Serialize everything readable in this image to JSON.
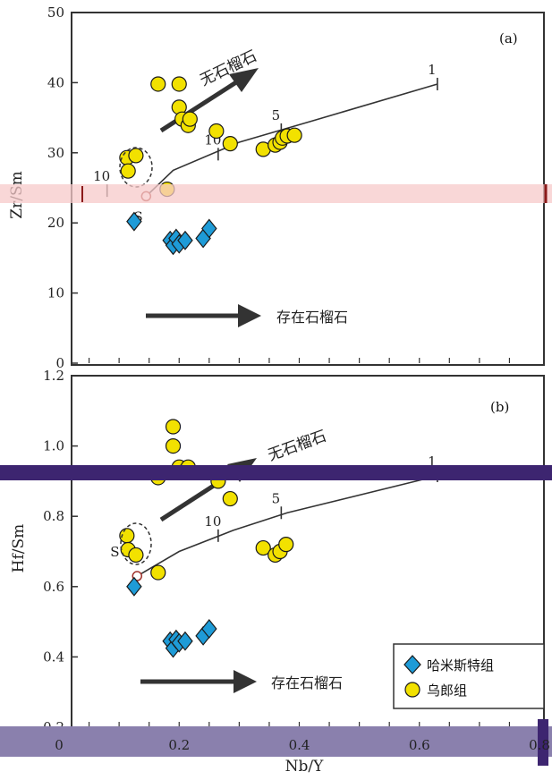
{
  "chart_data": [
    {
      "type": "scatter",
      "panel_label": "(a)",
      "ylabel": "Zr/Sm",
      "xlim": [
        0,
        0.8
      ],
      "ylim": [
        0,
        50
      ],
      "y_ticks": [
        0,
        10,
        20,
        30,
        40,
        50
      ],
      "series": [
        {
          "name": "哈米斯特组",
          "marker": "diamond",
          "points": [
            [
              0.125,
              20.2
            ],
            [
              0.185,
              17.5
            ],
            [
              0.19,
              16.8
            ],
            [
              0.195,
              17.8
            ],
            [
              0.2,
              17.0
            ],
            [
              0.21,
              17.5
            ],
            [
              0.24,
              17.8
            ],
            [
              0.25,
              19.2
            ]
          ]
        },
        {
          "name": "乌郎组",
          "marker": "circle",
          "points": [
            [
              0.165,
              39.8
            ],
            [
              0.2,
              39.8
            ],
            [
              0.2,
              36.5
            ],
            [
              0.205,
              34.8
            ],
            [
              0.215,
              33.9
            ],
            [
              0.218,
              34.8
            ],
            [
              0.262,
              33.1
            ],
            [
              0.285,
              31.3
            ],
            [
              0.34,
              30.5
            ],
            [
              0.36,
              31.1
            ],
            [
              0.368,
              31.5
            ],
            [
              0.372,
              32.1
            ],
            [
              0.38,
              32.4
            ],
            [
              0.392,
              32.5
            ],
            [
              0.113,
              29.3
            ],
            [
              0.128,
              29.6
            ],
            [
              0.115,
              27.4
            ],
            [
              0.18,
              24.8
            ]
          ]
        }
      ],
      "model_curve": {
        "points": [
          [
            0.145,
            23.8
          ],
          [
            0.19,
            27.5
          ],
          [
            0.3,
            31.5
          ],
          [
            0.42,
            34.5
          ],
          [
            0.63,
            39.8
          ]
        ],
        "source_label": "S",
        "tick_labels": [
          {
            "label": "1",
            "x": 0.63,
            "y": 39.8
          },
          {
            "label": "5",
            "x": 0.37,
            "y": 33.3
          },
          {
            "label": "10",
            "x": 0.265,
            "y": 29.8
          },
          {
            "label": "10",
            "x": 0.08,
            "y": 24.6
          }
        ]
      },
      "annotations": {
        "no_garnet": "无石榴石",
        "garnet_present": "存在石榴石"
      }
    },
    {
      "type": "scatter",
      "panel_label": "(b)",
      "ylabel": "Hf/Sm",
      "xlabel": "Nb/Y",
      "xlim": [
        0,
        0.8
      ],
      "ylim": [
        0.2,
        1.2
      ],
      "x_ticks": [
        0,
        0.2,
        0.4,
        0.6,
        0.8
      ],
      "x_tick_labels": [
        "0",
        "0.2",
        "0.4",
        "0.6",
        "0.8"
      ],
      "y_ticks": [
        0.2,
        0.4,
        0.6,
        0.8,
        1.0,
        1.2
      ],
      "y_tick_labels": [
        "0.2",
        "0.4",
        "0.6",
        "0.8",
        "1.0",
        "1.2"
      ],
      "series": [
        {
          "name": "哈米斯特组",
          "marker": "diamond",
          "points": [
            [
              0.125,
              0.6
            ],
            [
              0.185,
              0.445
            ],
            [
              0.19,
              0.425
            ],
            [
              0.195,
              0.45
            ],
            [
              0.2,
              0.44
            ],
            [
              0.21,
              0.445
            ],
            [
              0.24,
              0.46
            ],
            [
              0.25,
              0.48
            ]
          ]
        },
        {
          "name": "乌郎组",
          "marker": "circle",
          "points": [
            [
              0.19,
              1.055
            ],
            [
              0.19,
              1.0
            ],
            [
              0.2,
              0.94
            ],
            [
              0.205,
              0.925
            ],
            [
              0.215,
              0.94
            ],
            [
              0.165,
              0.91
            ],
            [
              0.265,
              0.9
            ],
            [
              0.285,
              0.85
            ],
            [
              0.34,
              0.71
            ],
            [
              0.36,
              0.69
            ],
            [
              0.368,
              0.7
            ],
            [
              0.378,
              0.72
            ],
            [
              0.113,
              0.745
            ],
            [
              0.115,
              0.705
            ],
            [
              0.128,
              0.69
            ],
            [
              0.165,
              0.64
            ]
          ]
        }
      ],
      "model_curve": {
        "points": [
          [
            0.13,
            0.63
          ],
          [
            0.2,
            0.7
          ],
          [
            0.29,
            0.76
          ],
          [
            0.38,
            0.81
          ],
          [
            0.63,
            0.915
          ]
        ],
        "source_label": "S",
        "tick_labels": [
          {
            "label": "1",
            "x": 0.63,
            "y": 0.915
          },
          {
            "label": "5",
            "x": 0.37,
            "y": 0.81
          },
          {
            "label": "10",
            "x": 0.265,
            "y": 0.745
          }
        ]
      },
      "annotations": {
        "no_garnet": "无石榴石",
        "garnet_present": "存在石榴石"
      },
      "legend": {
        "placement": "bottom-right",
        "items": [
          "哈米斯特组",
          "乌郎组"
        ]
      }
    }
  ],
  "colors": {
    "diamond_fill": "#1e9bd7",
    "circle_fill": "#f2e100",
    "marker_stroke": "#1a1a1a",
    "arrow": "#333333",
    "band_a": "#f7c9c9",
    "band_b_top": "#3d2570",
    "band_b_bottom": "#8a80ad"
  }
}
